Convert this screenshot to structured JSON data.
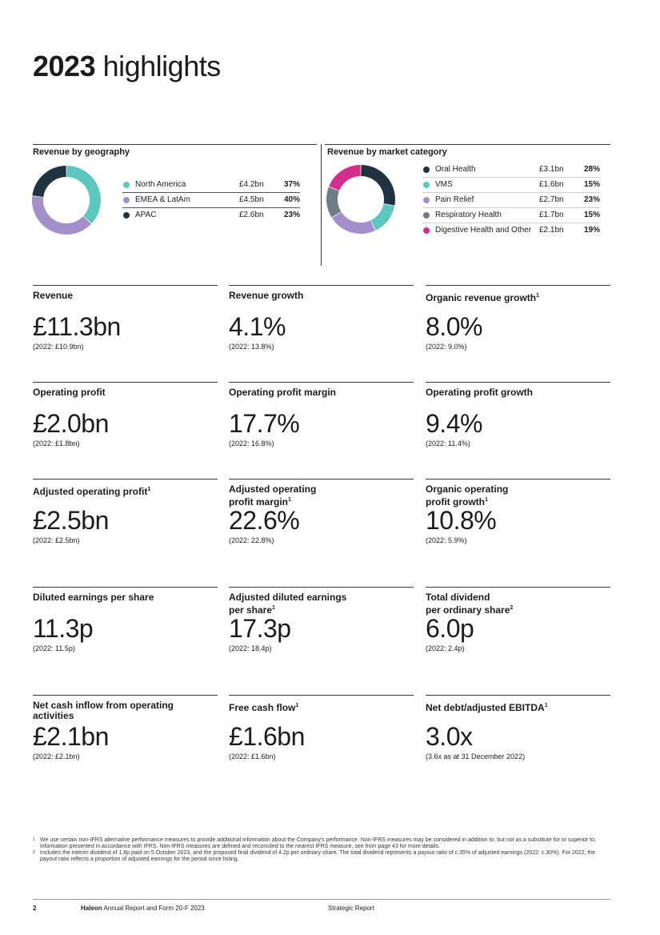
{
  "title": {
    "year": "2023",
    "rest": "highlights"
  },
  "geography": {
    "title": "Revenue by geography",
    "items": [
      {
        "name": "North America",
        "value": "£4.2bn",
        "pct": "37%",
        "share": 37,
        "color": "#5bc7bd"
      },
      {
        "name": "EMEA & LatAm",
        "value": "£4.5bn",
        "pct": "40%",
        "share": 40,
        "color": "#a58fca"
      },
      {
        "name": "APAC",
        "value": "£2.6bn",
        "pct": "23%",
        "share": 23,
        "color": "#1f3340"
      }
    ]
  },
  "category": {
    "title": "Revenue by market category",
    "items": [
      {
        "name": "Oral Health",
        "value": "£3.1bn",
        "pct": "28%",
        "share": 28,
        "color": "#1f3340"
      },
      {
        "name": "VMS",
        "value": "£1.6bn",
        "pct": "15%",
        "share": 15,
        "color": "#5bc7bd"
      },
      {
        "name": "Pain Relief",
        "value": "£2.7bn",
        "pct": "23%",
        "share": 23,
        "color": "#a58fca"
      },
      {
        "name": "Respiratory Health",
        "value": "£1.7bn",
        "pct": "15%",
        "share": 15,
        "color": "#6e7e86"
      },
      {
        "name": "Digestive Health and Other",
        "value": "£2.1bn",
        "pct": "19%",
        "share": 19,
        "color": "#d42f8f"
      }
    ]
  },
  "kpis": [
    {
      "l1": "Revenue",
      "sup": "",
      "l2": "",
      "value": "£11.3bn",
      "prior": "(2022: £10.9bn)"
    },
    {
      "l1": "Revenue growth",
      "sup": "",
      "l2": "",
      "value": "4.1%",
      "prior": "(2022: 13.8%)"
    },
    {
      "l1": "Organic revenue growth",
      "sup": "1",
      "l2": "",
      "value": "8.0%",
      "prior": "(2022: 9.0%)"
    },
    {
      "l1": "Operating profit",
      "sup": "",
      "l2": "",
      "value": "£2.0bn",
      "prior": "(2022: £1.8bn)"
    },
    {
      "l1": "Operating profit margin",
      "sup": "",
      "l2": "",
      "value": "17.7%",
      "prior": "(2022: 16.8%)"
    },
    {
      "l1": "Operating profit growth",
      "sup": "",
      "l2": "",
      "value": "9.4%",
      "prior": "(2022: 11.4%)"
    },
    {
      "l1": "Adjusted operating profit",
      "sup": "1",
      "l2": "",
      "value": "£2.5bn",
      "prior": "(2022: £2.5bn)"
    },
    {
      "l1": "Adjusted operating",
      "sup": "1",
      "l2": "profit margin",
      "value": "22.6%",
      "prior": "(2022: 22.8%)"
    },
    {
      "l1": "Organic operating",
      "sup": "1",
      "l2": "profit growth",
      "value": "10.8%",
      "prior": "(2022: 5.9%)"
    },
    {
      "l1": "Diluted earnings per share",
      "sup": "",
      "l2": "",
      "value": "11.3p",
      "prior": "(2022: 11.5p)"
    },
    {
      "l1": "Adjusted diluted earnings",
      "sup": "1",
      "l2": "per share",
      "value": "17.3p",
      "prior": "(2022: 18.4p)"
    },
    {
      "l1": "Total dividend",
      "sup": "2",
      "l2": "per ordinary share",
      "value": "6.0p",
      "prior": "(2022: 2.4p)"
    },
    {
      "l1": "Net cash inflow from operating",
      "sup": "",
      "l2": "activities",
      "value": "£2.1bn",
      "prior": "(2022: £2.1bn)"
    },
    {
      "l1": "Free cash flow",
      "sup": "1",
      "l2": "",
      "value": "£1.6bn",
      "prior": "(2022: £1.6bn)"
    },
    {
      "l1": "Net debt/adjusted EBITDA",
      "sup": "1",
      "l2": "",
      "value": "3.0x",
      "prior": "(3.6x as at 31 December 2022)"
    }
  ],
  "footnotes": [
    {
      "num": "1",
      "text": "We use certain non-IFRS alternative performance measures to provide additional information about the Company's performance. Non-IFRS measures may be considered in addition to, but not as a substitute for or superior to, information presented in accordance with IFRS. Non-IFRS measures are defined and reconciled to the nearest IFRS measure, see from page 43 for more details."
    },
    {
      "num": "2",
      "text": "Includes the interim dividend of 1.8p paid on 5 October 2023, and the proposed final dividend of 4.2p per ordinary share. The total dividend represents a payout ratio of c.35% of adjusted earnings (2022: c.30%). For 2022, the payout ratio reflects a proportion of adjusted earnings for the period since listing."
    }
  ],
  "footer": {
    "page": "2",
    "brand": "Haleon",
    "report": "Annual Report and Form 20-F 2023",
    "section": "Strategic Report"
  }
}
